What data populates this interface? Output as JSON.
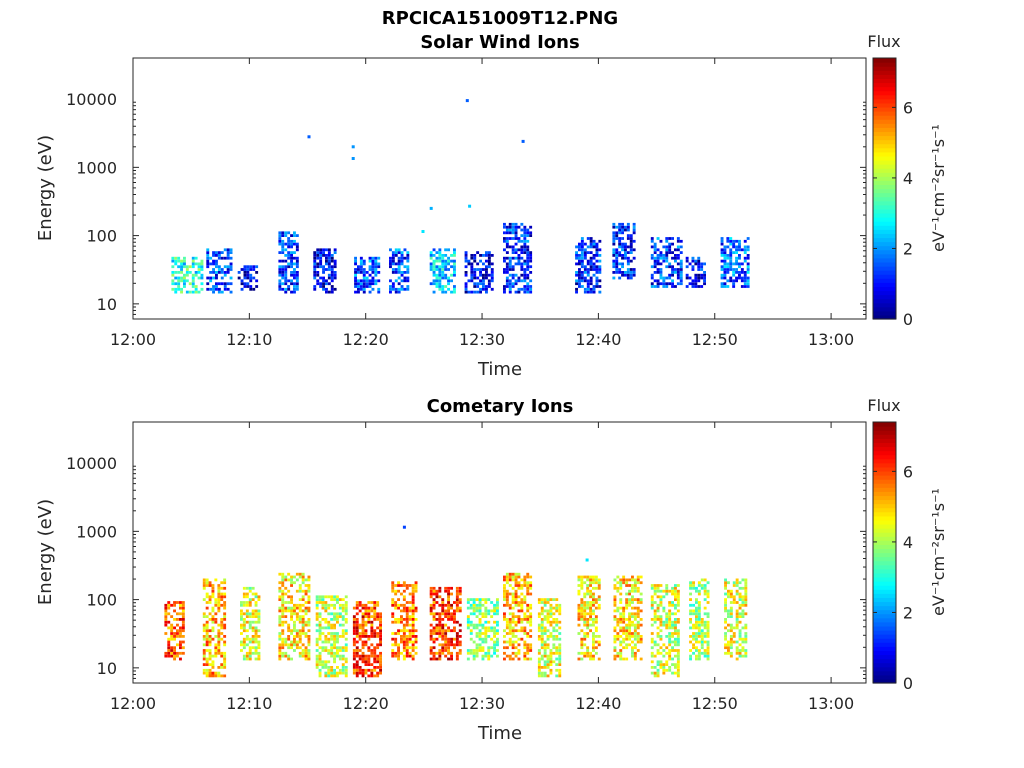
{
  "figure": {
    "title": "RPCICA151009T12.PNG",
    "colorbar": {
      "title": "Flux",
      "unit_label": "eV⁻¹cm⁻²sr⁻¹s⁻¹",
      "tick_labels": [
        "0",
        "2",
        "4",
        "6"
      ],
      "colormap": "jet",
      "range": [
        0,
        7.4
      ]
    }
  },
  "chart_data": [
    {
      "type": "heatmap",
      "title": "Solar Wind Ions",
      "xlabel": "Time",
      "ylabel": "Energy (eV)",
      "x_tick_labels": [
        "12:00",
        "12:10",
        "12:20",
        "12:30",
        "12:40",
        "12:50",
        "13:00"
      ],
      "y_tick_labels": [
        "10",
        "100",
        "1000",
        "10000"
      ],
      "xlim": [
        "12:00",
        "13:03"
      ],
      "ylim": [
        6,
        40000
      ],
      "y_scale": "log",
      "clusters": [
        {
          "t": "12:04.3",
          "e_lo": 13,
          "e_hi": 45,
          "level": 3.0
        },
        {
          "t": "12:07.3",
          "e_lo": 13,
          "e_hi": 60,
          "level": 1.4
        },
        {
          "t": "12:10.0",
          "e_lo": 15,
          "e_hi": 35,
          "level": 0.6
        },
        {
          "t": "12:13.5",
          "e_lo": 13,
          "e_hi": 110,
          "level": 1.3
        },
        {
          "t": "12:16.5",
          "e_lo": 13,
          "e_hi": 60,
          "level": 0.8
        },
        {
          "t": "12:20.0",
          "e_lo": 13,
          "e_hi": 45,
          "level": 1.5
        },
        {
          "t": "12:23.0",
          "e_lo": 13,
          "e_hi": 60,
          "level": 1.4
        },
        {
          "t": "12:26.5",
          "e_lo": 13,
          "e_hi": 60,
          "level": 2.4
        },
        {
          "t": "12:29.5",
          "e_lo": 13,
          "e_hi": 55,
          "level": 0.8
        },
        {
          "t": "12:32.8",
          "e_lo": 13,
          "e_hi": 140,
          "level": 1.2
        },
        {
          "t": "12:39.0",
          "e_lo": 13,
          "e_hi": 90,
          "level": 1.1
        },
        {
          "t": "12:42.2",
          "e_lo": 22,
          "e_hi": 150,
          "level": 1.1
        },
        {
          "t": "12:45.5",
          "e_lo": 17,
          "e_hi": 90,
          "level": 1.3
        },
        {
          "t": "12:48.5",
          "e_lo": 17,
          "e_hi": 45,
          "level": 0.8
        },
        {
          "t": "12:51.5",
          "e_lo": 17,
          "e_hi": 90,
          "level": 1.6
        }
      ],
      "points": [
        {
          "t": "12:15.0",
          "e": 2800,
          "level": 1.6
        },
        {
          "t": "12:18.8",
          "e": 2000,
          "level": 2.0
        },
        {
          "t": "12:18.8",
          "e": 1350,
          "level": 2.0
        },
        {
          "t": "12:25.5",
          "e": 250,
          "level": 2.2
        },
        {
          "t": "12:28.6",
          "e": 9500,
          "level": 1.6
        },
        {
          "t": "12:28.8",
          "e": 270,
          "level": 2.4
        },
        {
          "t": "12:33.4",
          "e": 2400,
          "level": 1.6
        },
        {
          "t": "12:24.8",
          "e": 115,
          "level": 2.6
        }
      ]
    },
    {
      "type": "heatmap",
      "title": "Cometary Ions",
      "xlabel": "Time",
      "ylabel": "Energy (eV)",
      "x_tick_labels": [
        "12:00",
        "12:10",
        "12:20",
        "12:30",
        "12:40",
        "12:50",
        "13:00"
      ],
      "y_tick_labels": [
        "10",
        "100",
        "1000",
        "10000"
      ],
      "xlim": [
        "12:00",
        "13:03"
      ],
      "ylim": [
        6,
        40000
      ],
      "y_scale": "log",
      "clusters": [
        {
          "t": "12:03.7",
          "e_lo": 12,
          "e_hi": 95,
          "level": 5.8
        },
        {
          "t": "12:07.0",
          "e_lo": 7,
          "e_hi": 190,
          "level": 5.2
        },
        {
          "t": "12:10.2",
          "e_lo": 12,
          "e_hi": 140,
          "level": 4.4
        },
        {
          "t": "12:13.5",
          "e_lo": 12,
          "e_hi": 230,
          "level": 4.8
        },
        {
          "t": "12:16.7",
          "e_lo": 7,
          "e_hi": 110,
          "level": 4.2
        },
        {
          "t": "12:19.9",
          "e_lo": 7,
          "e_hi": 90,
          "level": 6.0
        },
        {
          "t": "12:23.2",
          "e_lo": 12,
          "e_hi": 170,
          "level": 5.6
        },
        {
          "t": "12:26.5",
          "e_lo": 12,
          "e_hi": 140,
          "level": 6.1
        },
        {
          "t": "12:29.7",
          "e_lo": 12,
          "e_hi": 100,
          "level": 3.8
        },
        {
          "t": "12:32.8",
          "e_lo": 12,
          "e_hi": 230,
          "level": 5.2
        },
        {
          "t": "12:35.8",
          "e_lo": 7,
          "e_hi": 100,
          "level": 4.3
        },
        {
          "t": "12:39.2",
          "e_lo": 12,
          "e_hi": 210,
          "level": 4.8
        },
        {
          "t": "12:42.3",
          "e_lo": 12,
          "e_hi": 210,
          "level": 4.8
        },
        {
          "t": "12:45.5",
          "e_lo": 7,
          "e_hi": 160,
          "level": 4.3
        },
        {
          "t": "12:48.8",
          "e_lo": 12,
          "e_hi": 200,
          "level": 4.0
        },
        {
          "t": "12:51.8",
          "e_lo": 12,
          "e_hi": 200,
          "level": 4.4
        }
      ],
      "points": [
        {
          "t": "12:23.2",
          "e": 1150,
          "level": 1.4
        },
        {
          "t": "12:38.9",
          "e": 380,
          "level": 2.6
        }
      ]
    }
  ]
}
